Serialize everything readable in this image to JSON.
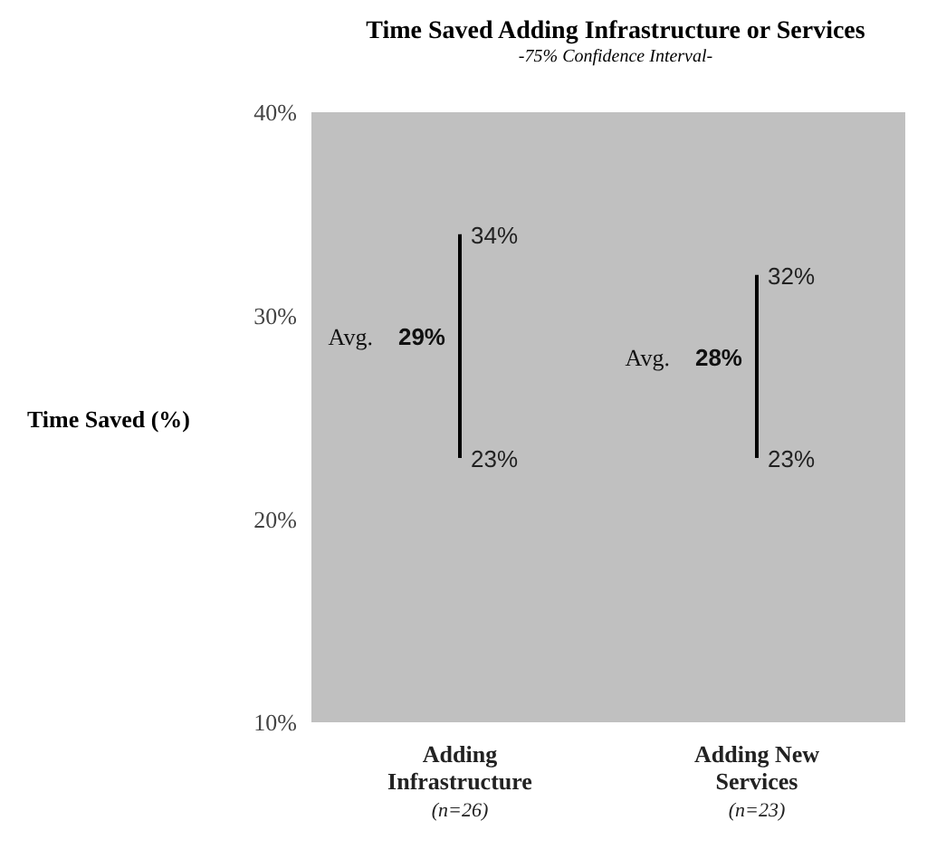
{
  "chart_data": {
    "type": "bar",
    "title": "Time Saved Adding Infrastructure or Services",
    "subtitle": "-75% Confidence Interval-",
    "ylabel": "Time Saved (%)",
    "categories": [
      "Adding Infrastructure",
      "Adding New Services"
    ],
    "series": [
      {
        "color": "#000000",
        "base": [
          23,
          23
        ],
        "values": [
          11,
          9
        ]
      }
    ],
    "ylim": [
      10,
      40
    ],
    "yticks": [
      {
        "value": 10,
        "label": "10%"
      },
      {
        "value": 20,
        "label": "20%"
      },
      {
        "value": 30,
        "label": "30%"
      },
      {
        "value": 40,
        "label": "40%"
      }
    ],
    "grid": false,
    "legend": false,
    "annotations": [
      {
        "text": "34%",
        "x": "Adding Infrastructure",
        "y": 34
      },
      {
        "text": "Avg. 29%",
        "x": "Adding Infrastructure",
        "y": 29
      },
      {
        "text": "23%",
        "x": "Adding Infrastructure",
        "y": 23
      },
      {
        "text": "32%",
        "x": "Adding New Services",
        "y": 32
      },
      {
        "text": "Avg. 28%",
        "x": "Adding New Services",
        "y": 28
      },
      {
        "text": "23%",
        "x": "Adding New Services",
        "y": 23
      },
      "(n=26)",
      "(n=23)"
    ]
  }
}
